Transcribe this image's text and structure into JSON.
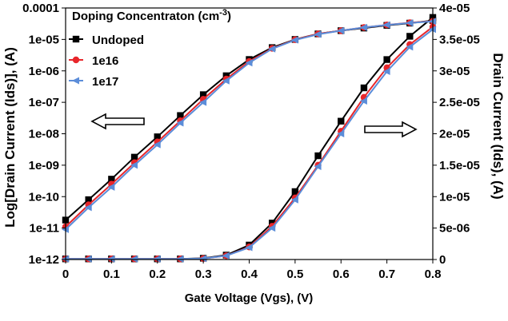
{
  "chart_data": {
    "type": "line",
    "xlabel": "Gate Voltage (Vgs), (V)",
    "ylabel_left": "Log[Drain Current (Ids)], (A)",
    "ylabel_right": "Drain Current (Ids), (A)",
    "legend_title": "Doping Concentraton (cm",
    "legend_title_sup": "-3",
    "legend_title_close": ")",
    "legend_placement": "top-left",
    "x": [
      0,
      0.05,
      0.1,
      0.15,
      0.2,
      0.25,
      0.3,
      0.35,
      0.4,
      0.45,
      0.5,
      0.55,
      0.6,
      0.65,
      0.7,
      0.75,
      0.8
    ],
    "x_ticks": [
      "0",
      "0.1",
      "0.2",
      "0.3",
      "0.4",
      "0.5",
      "0.6",
      "0.7",
      "0.8"
    ],
    "xlim": [
      0,
      0.8
    ],
    "y_left_scale": "log",
    "y_left_lim": [
      1e-12,
      0.0001
    ],
    "y_left_ticks": [
      "1e-12",
      "1e-11",
      "1e-10",
      "1e-09",
      "1e-08",
      "1e-07",
      "1e-06",
      "1e-05",
      "0.0001"
    ],
    "y_right_lim": [
      0,
      4e-05
    ],
    "y_right_ticks": [
      "0",
      "5e-06",
      "1e-05",
      "1.5e-05",
      "2e-05",
      "2.5e-05",
      "3e-05",
      "3.5e-05",
      "4e-05"
    ],
    "series": [
      {
        "name": "Undoped",
        "color": "#000000",
        "marker": "square",
        "log_values": [
          1.8e-11,
          8e-11,
          3.6e-10,
          1.8e-09,
          8e-09,
          3.8e-08,
          1.75e-07,
          7e-07,
          2.3e-06,
          5.5e-06,
          1e-05,
          1.5e-05,
          1.9e-05,
          2.3e-05,
          2.8e-05,
          3.3e-05,
          4e-05
        ],
        "linear_values": [
          1e-07,
          1e-07,
          1e-07,
          1e-07,
          1e-07,
          1e-07,
          2e-07,
          7e-07,
          2.3e-06,
          5.8e-06,
          1.08e-05,
          1.65e-05,
          2.2e-05,
          2.73e-05,
          3.18e-05,
          3.55e-05,
          3.85e-05
        ]
      },
      {
        "name": "1e16",
        "color": "#e8262b",
        "marker": "circle",
        "log_values": [
          1.1e-11,
          5.5e-11,
          2.5e-10,
          1.2e-09,
          5.5e-09,
          2.6e-08,
          1.25e-07,
          5.5e-07,
          2e-06,
          5.2e-06,
          9.8e-06,
          1.5e-05,
          1.9e-05,
          2.4e-05,
          2.9e-05,
          3.4e-05,
          3.8e-05
        ],
        "linear_values": [
          1e-07,
          1e-07,
          1e-07,
          1e-07,
          1e-07,
          1e-07,
          1.5e-07,
          6e-07,
          2e-06,
          5.3e-06,
          9.8e-06,
          1.5e-05,
          2.04e-05,
          2.58e-05,
          3.05e-05,
          3.42e-05,
          3.7e-05
        ]
      },
      {
        "name": "1e17",
        "color": "#5b8dd9",
        "marker": "triangle-left",
        "log_values": [
          9e-12,
          4.5e-11,
          2e-10,
          1e-09,
          4.5e-09,
          2.2e-08,
          1e-07,
          4.8e-07,
          1.8e-06,
          5e-06,
          9.6e-06,
          1.45e-05,
          1.9e-05,
          2.4e-05,
          2.9e-05,
          3.35e-05,
          3.75e-05
        ],
        "linear_values": [
          1e-07,
          1e-07,
          1e-07,
          1e-07,
          1e-07,
          1e-07,
          1.5e-07,
          6e-07,
          1.9e-06,
          5e-06,
          9.5e-06,
          1.48e-05,
          2e-05,
          2.52e-05,
          2.99e-05,
          3.38e-05,
          3.66e-05
        ]
      }
    ],
    "annotations": [
      {
        "type": "arrow",
        "direction": "left",
        "meaning": "points to left (log) axis"
      },
      {
        "type": "arrow",
        "direction": "right",
        "meaning": "points to right (linear) axis"
      }
    ]
  }
}
